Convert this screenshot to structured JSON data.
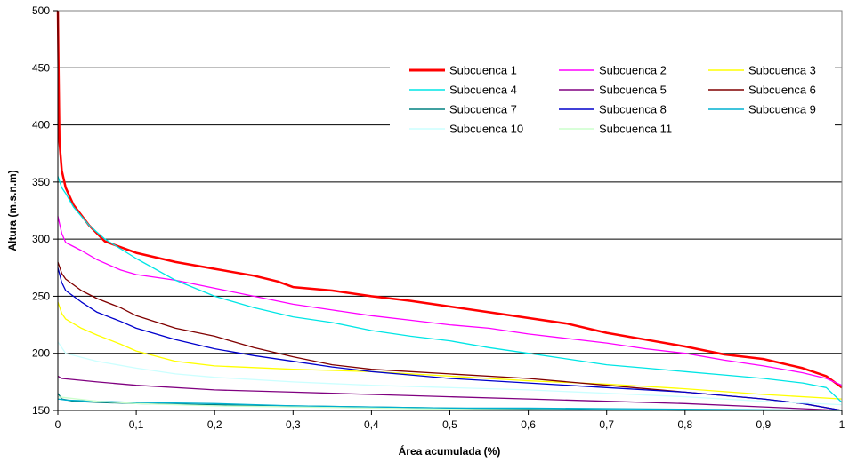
{
  "chart_data": {
    "type": "line",
    "title": "",
    "xlabel": "Área acumulada (%)",
    "ylabel": "Altura (m.s.n.m)",
    "xlim": [
      0,
      1
    ],
    "ylim": [
      150,
      500
    ],
    "x_ticks": [
      "0",
      "0,1",
      "0,2",
      "0,3",
      "0,4",
      "0,5",
      "0,6",
      "0,7",
      "0,8",
      "0,9",
      "1"
    ],
    "y_ticks": [
      "150",
      "200",
      "250",
      "300",
      "350",
      "400",
      "450",
      "500"
    ],
    "grid": "horizontal",
    "legend_position": "top-right",
    "series": [
      {
        "name": "Subcuenca 1",
        "color": "#ff0000",
        "points": [
          [
            0,
            500
          ],
          [
            0.001,
            440
          ],
          [
            0.002,
            385
          ],
          [
            0.005,
            360
          ],
          [
            0.01,
            345
          ],
          [
            0.02,
            330
          ],
          [
            0.04,
            312
          ],
          [
            0.06,
            298
          ],
          [
            0.1,
            288
          ],
          [
            0.15,
            280
          ],
          [
            0.2,
            274
          ],
          [
            0.25,
            268
          ],
          [
            0.28,
            263
          ],
          [
            0.3,
            258
          ],
          [
            0.35,
            255
          ],
          [
            0.4,
            250
          ],
          [
            0.45,
            246
          ],
          [
            0.5,
            241
          ],
          [
            0.55,
            236
          ],
          [
            0.6,
            231
          ],
          [
            0.65,
            226
          ],
          [
            0.7,
            218
          ],
          [
            0.75,
            212
          ],
          [
            0.8,
            206
          ],
          [
            0.85,
            199
          ],
          [
            0.9,
            195
          ],
          [
            0.95,
            187
          ],
          [
            0.98,
            180
          ],
          [
            1,
            170
          ]
        ]
      },
      {
        "name": "Subcuenca 2",
        "color": "#ff00ff",
        "points": [
          [
            0,
            320
          ],
          [
            0.005,
            305
          ],
          [
            0.01,
            297
          ],
          [
            0.03,
            290
          ],
          [
            0.05,
            282
          ],
          [
            0.08,
            273
          ],
          [
            0.1,
            269
          ],
          [
            0.15,
            264
          ],
          [
            0.2,
            257
          ],
          [
            0.25,
            250
          ],
          [
            0.3,
            243
          ],
          [
            0.35,
            238
          ],
          [
            0.4,
            233
          ],
          [
            0.45,
            229
          ],
          [
            0.5,
            225
          ],
          [
            0.55,
            222
          ],
          [
            0.6,
            217
          ],
          [
            0.65,
            213
          ],
          [
            0.7,
            209
          ],
          [
            0.75,
            204
          ],
          [
            0.8,
            200
          ],
          [
            0.85,
            194
          ],
          [
            0.9,
            189
          ],
          [
            0.95,
            183
          ],
          [
            0.98,
            178
          ],
          [
            1,
            172
          ]
        ]
      },
      {
        "name": "Subcuenca 3",
        "color": "#ffff00",
        "points": [
          [
            0,
            245
          ],
          [
            0.005,
            235
          ],
          [
            0.01,
            230
          ],
          [
            0.03,
            222
          ],
          [
            0.05,
            216
          ],
          [
            0.08,
            208
          ],
          [
            0.1,
            202
          ],
          [
            0.15,
            193
          ],
          [
            0.2,
            189
          ],
          [
            0.3,
            186
          ],
          [
            0.4,
            184
          ],
          [
            0.5,
            180
          ],
          [
            0.6,
            176
          ],
          [
            0.7,
            173
          ],
          [
            0.8,
            169
          ],
          [
            0.9,
            164
          ],
          [
            1,
            160
          ]
        ]
      },
      {
        "name": "Subcuenca 4",
        "color": "#00e5e5",
        "points": [
          [
            0,
            355
          ],
          [
            0.005,
            345
          ],
          [
            0.01,
            340
          ],
          [
            0.02,
            328
          ],
          [
            0.04,
            312
          ],
          [
            0.06,
            300
          ],
          [
            0.1,
            283
          ],
          [
            0.15,
            264
          ],
          [
            0.2,
            250
          ],
          [
            0.25,
            240
          ],
          [
            0.3,
            232
          ],
          [
            0.35,
            227
          ],
          [
            0.4,
            220
          ],
          [
            0.45,
            215
          ],
          [
            0.5,
            211
          ],
          [
            0.55,
            205
          ],
          [
            0.6,
            200
          ],
          [
            0.65,
            195
          ],
          [
            0.7,
            190
          ],
          [
            0.75,
            187
          ],
          [
            0.8,
            184
          ],
          [
            0.85,
            181
          ],
          [
            0.9,
            178
          ],
          [
            0.95,
            174
          ],
          [
            0.98,
            170
          ],
          [
            1,
            157
          ]
        ]
      },
      {
        "name": "Subcuenca 5",
        "color": "#800080",
        "points": [
          [
            0,
            180
          ],
          [
            0.005,
            178
          ],
          [
            0.05,
            175
          ],
          [
            0.1,
            172
          ],
          [
            0.2,
            168
          ],
          [
            0.3,
            166
          ],
          [
            0.4,
            164
          ],
          [
            0.5,
            162
          ],
          [
            0.6,
            160
          ],
          [
            0.7,
            158
          ],
          [
            0.8,
            156
          ],
          [
            0.9,
            153
          ],
          [
            1,
            150
          ]
        ]
      },
      {
        "name": "Subcuenca 6",
        "color": "#800000",
        "points": [
          [
            0,
            280
          ],
          [
            0.005,
            270
          ],
          [
            0.01,
            265
          ],
          [
            0.03,
            255
          ],
          [
            0.05,
            248
          ],
          [
            0.08,
            240
          ],
          [
            0.1,
            233
          ],
          [
            0.15,
            222
          ],
          [
            0.2,
            215
          ],
          [
            0.25,
            205
          ],
          [
            0.3,
            197
          ],
          [
            0.35,
            190
          ],
          [
            0.4,
            186
          ],
          [
            0.45,
            184
          ],
          [
            0.5,
            182
          ],
          [
            0.6,
            178
          ],
          [
            0.7,
            172
          ],
          [
            0.8,
            166
          ],
          [
            0.9,
            160
          ],
          [
            0.95,
            156
          ],
          [
            1,
            150
          ]
        ]
      },
      {
        "name": "Subcuenca 7",
        "color": "#008080",
        "points": [
          [
            0,
            165
          ],
          [
            0.005,
            160
          ],
          [
            0.02,
            158
          ],
          [
            0.05,
            157
          ],
          [
            0.1,
            156
          ],
          [
            0.2,
            155
          ],
          [
            0.3,
            154
          ],
          [
            0.4,
            153
          ],
          [
            0.5,
            152
          ],
          [
            0.6,
            151
          ],
          [
            0.8,
            150
          ],
          [
            1,
            150
          ]
        ]
      },
      {
        "name": "Subcuenca 8",
        "color": "#0000cc",
        "points": [
          [
            0,
            275
          ],
          [
            0.005,
            262
          ],
          [
            0.01,
            255
          ],
          [
            0.03,
            245
          ],
          [
            0.05,
            236
          ],
          [
            0.08,
            228
          ],
          [
            0.1,
            222
          ],
          [
            0.15,
            212
          ],
          [
            0.2,
            204
          ],
          [
            0.25,
            198
          ],
          [
            0.3,
            193
          ],
          [
            0.35,
            188
          ],
          [
            0.4,
            184
          ],
          [
            0.45,
            181
          ],
          [
            0.5,
            178
          ],
          [
            0.6,
            174
          ],
          [
            0.7,
            170
          ],
          [
            0.8,
            166
          ],
          [
            0.9,
            160
          ],
          [
            0.95,
            156
          ],
          [
            1,
            150
          ]
        ]
      },
      {
        "name": "Subcuenca 9",
        "color": "#00b0d0",
        "points": [
          [
            0,
            160
          ],
          [
            0.01,
            159
          ],
          [
            0.05,
            158
          ],
          [
            0.1,
            157
          ],
          [
            0.2,
            156
          ],
          [
            0.3,
            154
          ],
          [
            0.4,
            153
          ],
          [
            0.5,
            152
          ],
          [
            0.6,
            152
          ],
          [
            0.8,
            151
          ],
          [
            1,
            150
          ]
        ]
      },
      {
        "name": "Subcuenca 10",
        "color": "#ccffff",
        "points": [
          [
            0,
            210
          ],
          [
            0.01,
            200
          ],
          [
            0.05,
            193
          ],
          [
            0.1,
            187
          ],
          [
            0.15,
            182
          ],
          [
            0.2,
            179
          ],
          [
            0.3,
            175
          ],
          [
            0.4,
            172
          ],
          [
            0.5,
            170
          ],
          [
            0.6,
            168
          ],
          [
            0.7,
            165
          ],
          [
            0.8,
            162
          ],
          [
            0.9,
            158
          ],
          [
            1,
            155
          ]
        ]
      },
      {
        "name": "Subcuenca 11",
        "color": "#ccffcc",
        "points": [
          [
            0,
            162
          ],
          [
            0.05,
            158
          ],
          [
            0.1,
            156
          ],
          [
            0.2,
            154
          ],
          [
            0.3,
            153
          ],
          [
            0.4,
            152
          ],
          [
            0.5,
            151
          ],
          [
            0.7,
            150
          ],
          [
            1,
            150
          ]
        ]
      }
    ]
  }
}
